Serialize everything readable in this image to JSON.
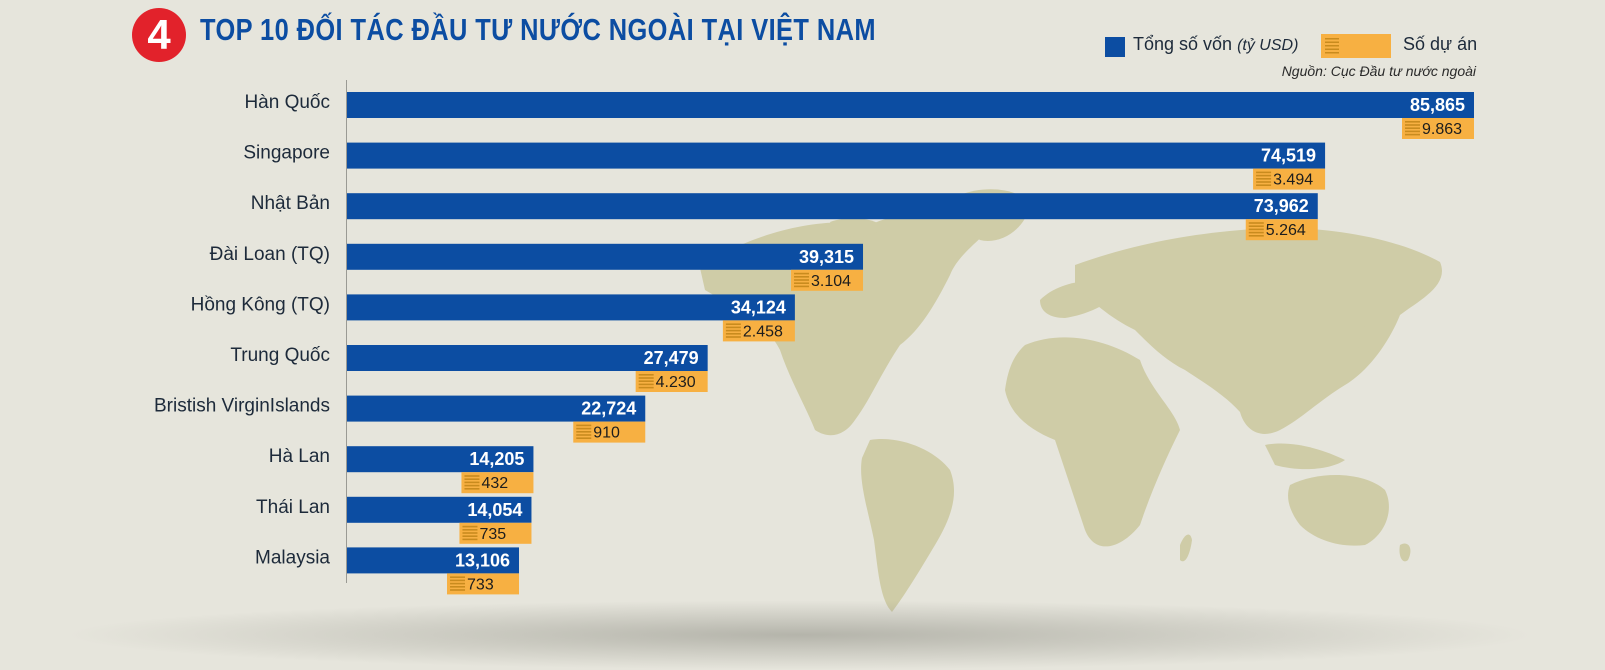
{
  "header": {
    "badge_number": "4",
    "title": "TOP 10 ĐỐI TÁC ĐẦU TƯ NƯỚC NGOÀI TẠI VIỆT NAM"
  },
  "legend": {
    "capital_label": "Tổng số vốn",
    "capital_unit": "(tỷ USD)",
    "projects_label": "Số dự án"
  },
  "source": "Nguồn: Cục Đầu tư nước ngoài",
  "colors": {
    "capital_bar": "#0c4da2",
    "projects_box": "#f7b042",
    "badge": "#e2222b",
    "map": "#cfcca7"
  },
  "chart_data": {
    "type": "bar",
    "orientation": "horizontal",
    "title": "TOP 10 ĐỐI TÁC ĐẦU TƯ NƯỚC NGOÀI TẠI VIỆT NAM",
    "categories": [
      "Hàn Quốc",
      "Singapore",
      "Nhật Bản",
      "Đài Loan (TQ)",
      "Hồng Kông (TQ)",
      "Trung Quốc",
      "Bristish VirginIslands",
      "Hà Lan",
      "Thái Lan",
      "Malaysia"
    ],
    "series": [
      {
        "name": "Tổng số vốn (tỷ USD)",
        "values": [
          85.865,
          74.519,
          73.962,
          39.315,
          34.124,
          27.479,
          22.724,
          14.205,
          14.054,
          13.106
        ],
        "labels": [
          "85,865",
          "74,519",
          "73,962",
          "39,315",
          "34,124",
          "27,479",
          "22,724",
          "14,205",
          "14,054",
          "13,106"
        ]
      },
      {
        "name": "Số dự án",
        "values": [
          9863,
          3494,
          5264,
          3104,
          2458,
          4230,
          910,
          432,
          735,
          733
        ],
        "labels": [
          "9.863",
          "3.494",
          "5.264",
          "3.104",
          "2.458",
          "4.230",
          "910",
          "432",
          "735",
          "733"
        ]
      }
    ],
    "xlim": [
      0,
      85.865
    ],
    "grid": false,
    "legend_position": "top-right"
  }
}
